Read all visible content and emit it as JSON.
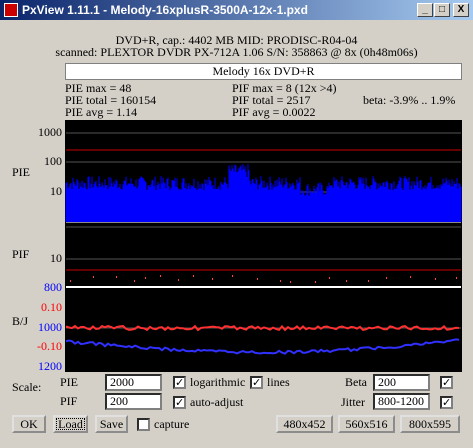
{
  "window": {
    "title": "PxView 1.11.1 - Melody-16xplusR-3500A-12x-1.pxd"
  },
  "header": {
    "line1": "DVD+R, cap.: 4402 MB MID: PRODISC-R04-04",
    "line2": "scanned: PLEXTOR DVDR PX-712A 1.06 S/N: 358863 @ 8x (0h48m06s)",
    "disc": "Melody 16x DVD+R"
  },
  "stats": {
    "pie_max": "PIE max = 48",
    "pif_max": "PIF max = 8 (12x >4)",
    "pie_total": "PIE total = 160154",
    "pif_total": "PIF total = 2517",
    "beta": "beta: -3.9% .. 1.9%",
    "pie_avg": "PIE avg = 1.14",
    "pif_avg": "PIF avg = 0.0022"
  },
  "chart": {
    "pie_label": "PIE",
    "pie_ticks": [
      "1000",
      "100",
      "10"
    ],
    "pif_label": "PIF",
    "pif_ticks": [
      "10"
    ],
    "bj_label": "B/J",
    "bj_ticks": [
      "800",
      "0.10",
      "1000",
      "-0.10",
      "1200"
    ]
  },
  "controls": {
    "scale": "Scale:",
    "pie": "PIE",
    "pie_scale": "2000",
    "logarithmic": "logarithmic",
    "lines": "lines",
    "beta": "Beta",
    "beta_scale": "200",
    "pif": "PIF",
    "pif_scale": "200",
    "auto_adjust": "auto-adjust",
    "jitter": "Jitter",
    "jitter_scale": "800-1200",
    "ok": "OK",
    "load": "Load",
    "save": "Save",
    "capture": "capture",
    "size1": "480x452",
    "size2": "560x516",
    "size3": "800x595"
  }
}
